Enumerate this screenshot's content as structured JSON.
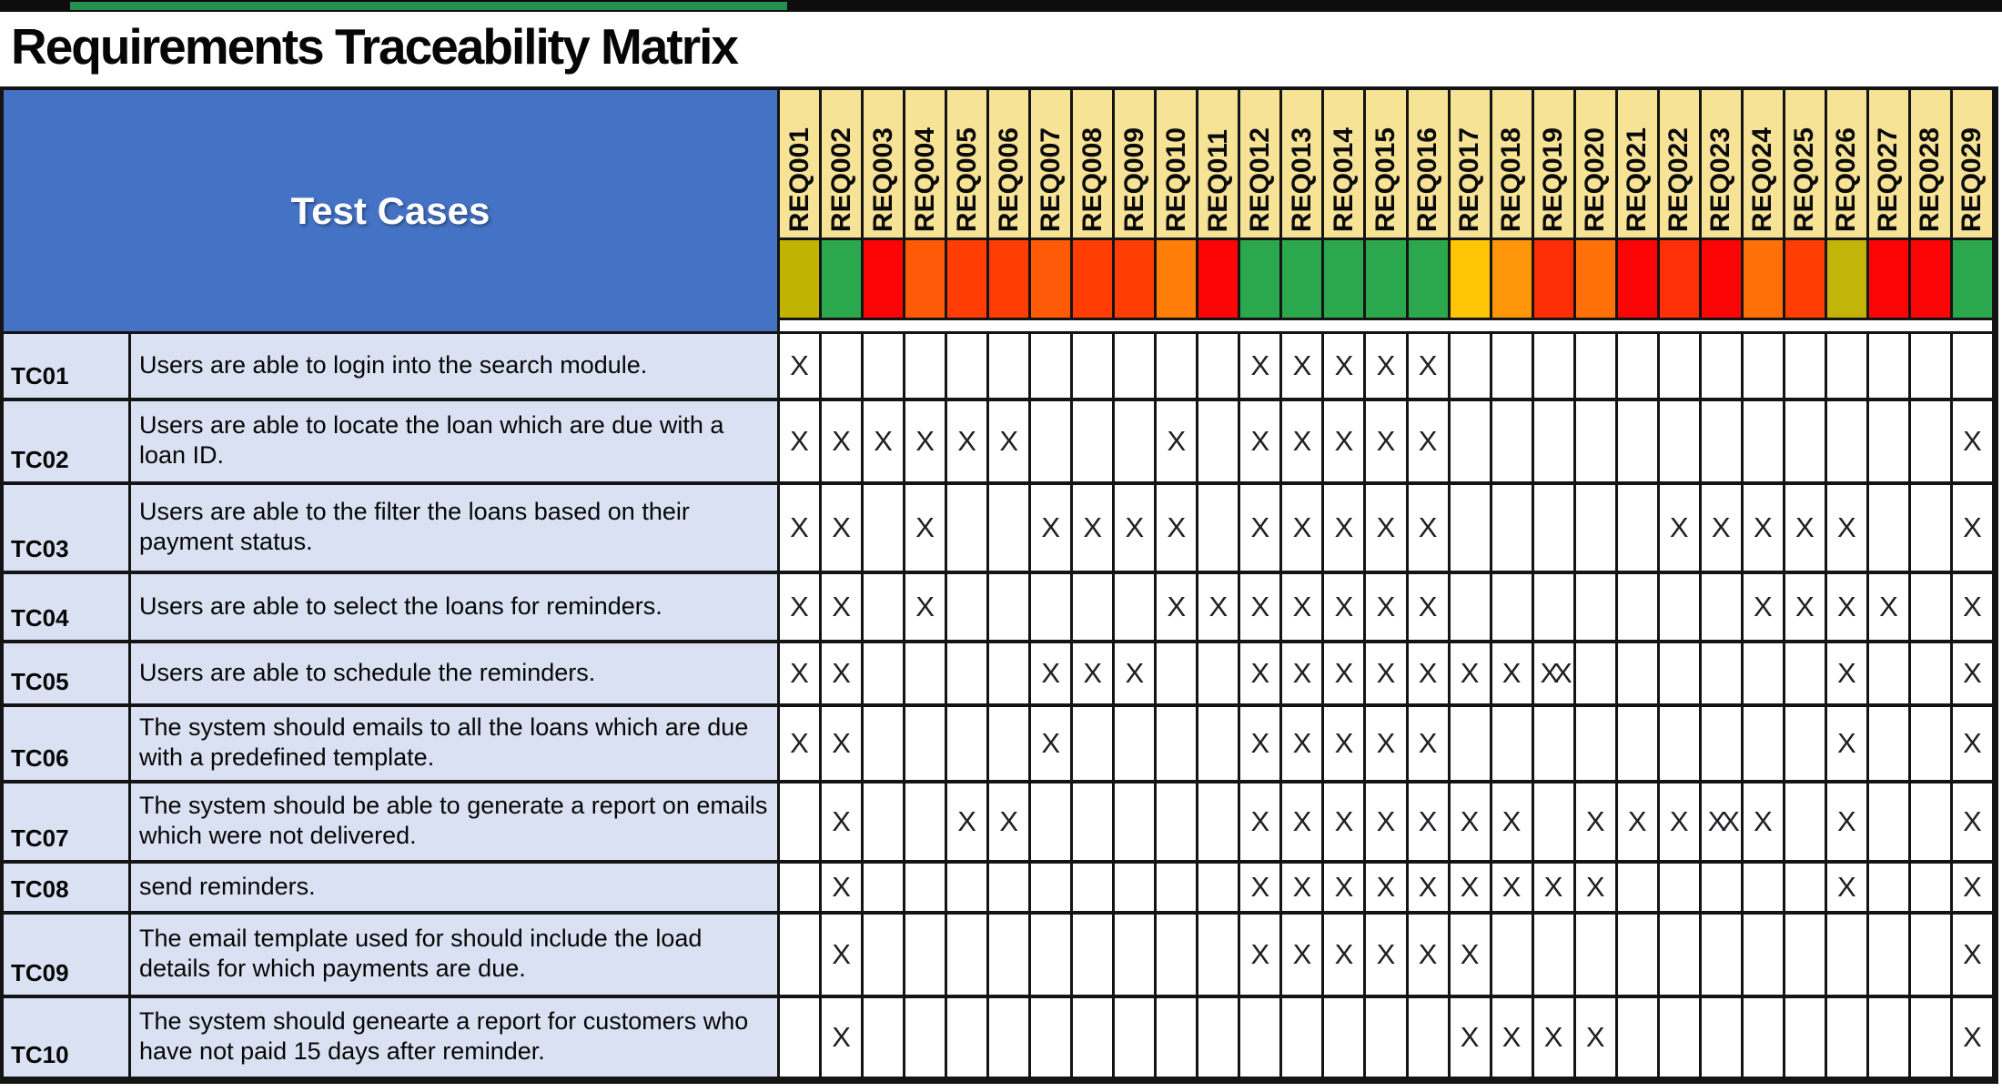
{
  "title": "Requirements Traceability Matrix",
  "matrix": {
    "corner_label": "Test Cases",
    "columns": [
      {
        "id": "REQ001",
        "color": "#C1B301"
      },
      {
        "id": "REQ002",
        "color": "#2BA84D"
      },
      {
        "id": "REQ003",
        "color": "#FB0506"
      },
      {
        "id": "REQ004",
        "color": "#FF5A08"
      },
      {
        "id": "REQ005",
        "color": "#FF3D05"
      },
      {
        "id": "REQ006",
        "color": "#FF3D05"
      },
      {
        "id": "REQ007",
        "color": "#FF5A08"
      },
      {
        "id": "REQ008",
        "color": "#FF3D05"
      },
      {
        "id": "REQ009",
        "color": "#FF3D05"
      },
      {
        "id": "REQ010",
        "color": "#FF7D09"
      },
      {
        "id": "REQ011",
        "color": "#FB0506"
      },
      {
        "id": "REQ012",
        "color": "#2BA84D"
      },
      {
        "id": "REQ013",
        "color": "#2BA84D"
      },
      {
        "id": "REQ014",
        "color": "#2BA84D"
      },
      {
        "id": "REQ015",
        "color": "#2BA84D"
      },
      {
        "id": "REQ016",
        "color": "#2BA84D"
      },
      {
        "id": "REQ017",
        "color": "#FFC608"
      },
      {
        "id": "REQ018",
        "color": "#FF9508"
      },
      {
        "id": "REQ019",
        "color": "#FF2E07"
      },
      {
        "id": "REQ020",
        "color": "#FF7009"
      },
      {
        "id": "REQ021",
        "color": "#FB0506"
      },
      {
        "id": "REQ022",
        "color": "#FF3007"
      },
      {
        "id": "REQ023",
        "color": "#FB0506"
      },
      {
        "id": "REQ024",
        "color": "#FF7009"
      },
      {
        "id": "REQ025",
        "color": "#FF3D05"
      },
      {
        "id": "REQ026",
        "color": "#C2B409"
      },
      {
        "id": "REQ027",
        "color": "#FB0506"
      },
      {
        "id": "REQ028",
        "color": "#FB0506"
      },
      {
        "id": "REQ029",
        "color": "#2BA84D"
      }
    ],
    "rows": [
      {
        "id": "TC01",
        "description": "Users are able to login into the search module.",
        "marks": [
          "X",
          "",
          "",
          "",
          "",
          "",
          "",
          "",
          "",
          "",
          "",
          "X",
          "X",
          "X",
          "X",
          "X",
          "",
          "",
          "",
          "",
          "",
          "",
          "",
          "",
          "",
          "",
          "",
          "",
          ""
        ]
      },
      {
        "id": "TC02",
        "description": "Users are able to locate the loan which are due with a loan ID.",
        "marks": [
          "X",
          "X",
          "X",
          "X",
          "X",
          "X",
          "",
          "",
          "",
          "X",
          "",
          "X",
          "X",
          "X",
          "X",
          "X",
          "",
          "",
          "",
          "",
          "",
          "",
          "",
          "",
          "",
          "",
          "",
          "",
          "X"
        ]
      },
      {
        "id": "TC03",
        "description": "Users are able to the filter the loans based on their payment status.",
        "marks": [
          "X",
          "X",
          "",
          "X",
          "",
          "",
          "X",
          "X",
          "X",
          "X",
          "",
          "X",
          "X",
          "X",
          "X",
          "X",
          "",
          "",
          "",
          "",
          "",
          "X",
          "X",
          "X",
          "X",
          "X",
          "",
          "",
          "X"
        ]
      },
      {
        "id": "TC04",
        "description": "Users are able to select the loans for reminders.",
        "marks": [
          "X",
          "X",
          "",
          "X",
          "",
          "",
          "",
          "",
          "",
          "X",
          "X",
          "X",
          "X",
          "X",
          "X",
          "X",
          "",
          "",
          "",
          "",
          "",
          "",
          "",
          "X",
          "X",
          "X",
          "X",
          "",
          "X"
        ]
      },
      {
        "id": "TC05",
        "description": "Users are able to schedule the reminders.",
        "marks": [
          "X",
          "X",
          "",
          "",
          "",
          "",
          "X",
          "X",
          "X",
          "",
          "",
          "X",
          "X",
          "X",
          "X",
          "X",
          "X",
          "X",
          "XX",
          "",
          "",
          "",
          "",
          "",
          "",
          "X",
          "",
          "",
          "X"
        ]
      },
      {
        "id": "TC06",
        "description": "The system should emails to all the loans which are due with a predefined template.",
        "marks": [
          "X",
          "X",
          "",
          "",
          "",
          "",
          "X",
          "",
          "",
          "",
          "",
          "X",
          "X",
          "X",
          "X",
          "X",
          "",
          "",
          "",
          "",
          "",
          "",
          "",
          "",
          "",
          "X",
          "",
          "",
          "X"
        ]
      },
      {
        "id": "TC07",
        "description": "The system should be able to generate a report on emails which were not delivered.",
        "marks": [
          "",
          "X",
          "",
          "",
          "X",
          "X",
          "",
          "",
          "",
          "",
          "",
          "X",
          "X",
          "X",
          "X",
          "X",
          "X",
          "X",
          "",
          "X",
          "X",
          "X",
          "XX",
          "X",
          "",
          "X",
          "",
          "",
          "X"
        ]
      },
      {
        "id": "TC08",
        "description": "send reminders.",
        "marks": [
          "",
          "X",
          "",
          "",
          "",
          "",
          "",
          "",
          "",
          "",
          "",
          "X",
          "X",
          "X",
          "X",
          "X",
          "X",
          "X",
          "X",
          "X",
          "",
          "",
          "",
          "",
          "",
          "X",
          "",
          "",
          "X"
        ]
      },
      {
        "id": "TC09",
        "description": "The email template used for should include the load details for which payments are due.",
        "marks": [
          "",
          "X",
          "",
          "",
          "",
          "",
          "",
          "",
          "",
          "",
          "",
          "X",
          "X",
          "X",
          "X",
          "X",
          "X",
          "",
          "",
          "",
          "",
          "",
          "",
          "",
          "",
          "",
          "",
          "",
          "X"
        ]
      },
      {
        "id": "TC10",
        "description": "The system should genearte a report for customers who have not paid 15 days after reminder.",
        "marks": [
          "",
          "X",
          "",
          "",
          "",
          "",
          "",
          "",
          "",
          "",
          "",
          "",
          "",
          "",
          "",
          "",
          "X",
          "X",
          "X",
          "X",
          "",
          "",
          "",
          "",
          "",
          "",
          "",
          "",
          "X"
        ]
      }
    ]
  },
  "theme": {
    "header_fill": "#F7E396",
    "corner_fill": "#4472C4",
    "row_fill": "#D9E1F2",
    "grid_line": "#141414",
    "top_bar": "#0D0D0D",
    "top_bar_accent": "#23904F",
    "mark_color": "#1F1F24"
  }
}
